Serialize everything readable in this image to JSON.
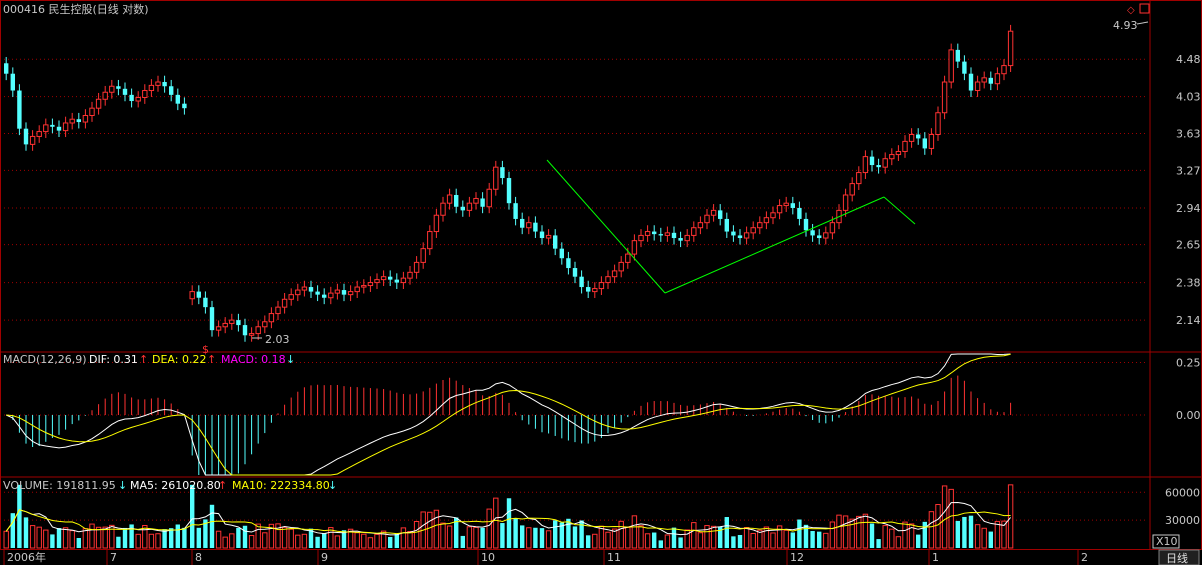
{
  "header": {
    "title": "000416 民生控股(日线 对数)",
    "max_label": "4.93",
    "min_label": "2.03",
    "event_marker": "$"
  },
  "price_panel": {
    "y_ticks": [
      "4.48",
      "4.03",
      "3.63",
      "3.27",
      "2.94",
      "2.65",
      "2.38",
      "2.14"
    ],
    "scale": "log"
  },
  "macd_panel": {
    "label_main": "MACD(12,26,9)",
    "dif_label": "DIF: 0.31",
    "dea_label": "DEA: 0.22",
    "macd_label": "MACD: 0.18",
    "y_ticks": [
      "0.25",
      "0.00"
    ],
    "dif_arrow": "↑",
    "dea_arrow": "↑",
    "macd_arrow": "↓"
  },
  "volume_panel": {
    "vol_label": "VOLUME: 191811.95",
    "ma5_label": "MA5: 261020.80",
    "ma10_label": "MA10: 222334.80",
    "y_ticks": [
      "60000",
      "30000"
    ],
    "unit": "X10",
    "vol_arrow": "↓",
    "ma5_arrow": "↑",
    "ma10_arrow": "↓"
  },
  "x_axis": {
    "labels": [
      "2006年",
      "7",
      "8",
      "9",
      "10",
      "11",
      "12",
      "1",
      "2"
    ],
    "period_tab": "日线"
  },
  "colors": {
    "up": "#ff3232",
    "down": "#54ffff",
    "grid": "#a00000",
    "axis_text": "#c8c8c8",
    "dif": "#ffffff",
    "dea": "#ffff00",
    "macd": "#ff00ff",
    "trend": "#00ff00"
  },
  "chart_data": {
    "type": "candlestick",
    "title": "000416 民生控股(日线 对数)",
    "price": {
      "first_leg": [
        4.3,
        4.1,
        3.68,
        3.52,
        3.6,
        3.65,
        3.72,
        3.7,
        3.66,
        3.74,
        3.78,
        3.75,
        3.82,
        3.9,
        4.0,
        4.08,
        4.15,
        4.12,
        4.05,
        3.98,
        4.02,
        4.1,
        4.16,
        4.2,
        4.15,
        4.05,
        3.95,
        3.9
      ],
      "second_leg": [
        2.32,
        2.28,
        2.22,
        2.08,
        2.1,
        2.12,
        2.14,
        2.11,
        2.05,
        2.06,
        2.1,
        2.13,
        2.18,
        2.22,
        2.27,
        2.3,
        2.33,
        2.35,
        2.32,
        2.3,
        2.28,
        2.31,
        2.33,
        2.3,
        2.32,
        2.35,
        2.36,
        2.38,
        2.4,
        2.42,
        2.4,
        2.38,
        2.41,
        2.45,
        2.52,
        2.62,
        2.75,
        2.88,
        2.98,
        3.05,
        2.95,
        2.92,
        2.98,
        3.02,
        2.95,
        3.1,
        3.3,
        3.2,
        2.98,
        2.85,
        2.78,
        2.82,
        2.75,
        2.7,
        2.72,
        2.62,
        2.55,
        2.48,
        2.42,
        2.35,
        2.32,
        2.34,
        2.38,
        2.42,
        2.46,
        2.52,
        2.58,
        2.68,
        2.72,
        2.75,
        2.73,
        2.72,
        2.74,
        2.7,
        2.68,
        2.72,
        2.78,
        2.82,
        2.88,
        2.92,
        2.85,
        2.75,
        2.72,
        2.7,
        2.74,
        2.78,
        2.82,
        2.86,
        2.9,
        2.96,
        2.98,
        2.94,
        2.85,
        2.76,
        2.72,
        2.7,
        2.74,
        2.82,
        2.92,
        3.05,
        3.15,
        3.25,
        3.4,
        3.32,
        3.3,
        3.38,
        3.42,
        3.45,
        3.55,
        3.62,
        3.58,
        3.48,
        3.62,
        3.85,
        4.2,
        4.6,
        4.45,
        4.3,
        4.1,
        4.2,
        4.25,
        4.18,
        4.3,
        4.4,
        4.85
      ]
    },
    "annotations": [
      "4.93",
      "2.03"
    ],
    "ylim": [
      2.03,
      4.93
    ]
  }
}
